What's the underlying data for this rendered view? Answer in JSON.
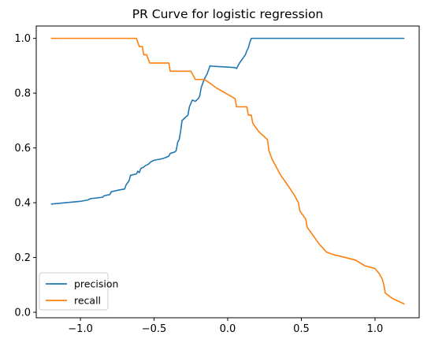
{
  "chart_data": {
    "type": "line",
    "title": "PR Curve for logistic regression",
    "xlabel": "",
    "ylabel": "",
    "xlim": [
      -1.3,
      1.3
    ],
    "ylim": [
      -0.02,
      1.045
    ],
    "x_ticks": [
      {
        "value": -1.0,
        "label": "−1.0"
      },
      {
        "value": -0.5,
        "label": "−0.5"
      },
      {
        "value": 0.0,
        "label": "0.0"
      },
      {
        "value": 0.5,
        "label": "0.5"
      },
      {
        "value": 1.0,
        "label": "1.0"
      }
    ],
    "y_ticks": [
      {
        "value": 0.0,
        "label": "0.0"
      },
      {
        "value": 0.2,
        "label": "0.2"
      },
      {
        "value": 0.4,
        "label": "0.4"
      },
      {
        "value": 0.6,
        "label": "0.6"
      },
      {
        "value": 0.8,
        "label": "0.8"
      },
      {
        "value": 1.0,
        "label": "1.0"
      }
    ],
    "grid": false,
    "legend_position": "lower-left",
    "series": [
      {
        "name": "precision",
        "color": "#1f77b4",
        "points": [
          [
            -1.2,
            0.395
          ],
          [
            -1.1,
            0.4
          ],
          [
            -1.0,
            0.405
          ],
          [
            -0.95,
            0.41
          ],
          [
            -0.93,
            0.415
          ],
          [
            -0.85,
            0.42
          ],
          [
            -0.84,
            0.425
          ],
          [
            -0.8,
            0.43
          ],
          [
            -0.79,
            0.44
          ],
          [
            -0.75,
            0.445
          ],
          [
            -0.7,
            0.45
          ],
          [
            -0.69,
            0.465
          ],
          [
            -0.67,
            0.48
          ],
          [
            -0.66,
            0.5
          ],
          [
            -0.62,
            0.505
          ],
          [
            -0.61,
            0.515
          ],
          [
            -0.6,
            0.51
          ],
          [
            -0.59,
            0.525
          ],
          [
            -0.57,
            0.53
          ],
          [
            -0.56,
            0.535
          ],
          [
            -0.54,
            0.54
          ],
          [
            -0.52,
            0.55
          ],
          [
            -0.5,
            0.555
          ],
          [
            -0.45,
            0.56
          ],
          [
            -0.42,
            0.565
          ],
          [
            -0.4,
            0.57
          ],
          [
            -0.39,
            0.58
          ],
          [
            -0.36,
            0.585
          ],
          [
            -0.35,
            0.59
          ],
          [
            -0.34,
            0.62
          ],
          [
            -0.33,
            0.63
          ],
          [
            -0.32,
            0.66
          ],
          [
            -0.31,
            0.7
          ],
          [
            -0.29,
            0.71
          ],
          [
            -0.27,
            0.72
          ],
          [
            -0.26,
            0.75
          ],
          [
            -0.24,
            0.775
          ],
          [
            -0.22,
            0.77
          ],
          [
            -0.2,
            0.78
          ],
          [
            -0.19,
            0.79
          ],
          [
            -0.18,
            0.82
          ],
          [
            -0.16,
            0.85
          ],
          [
            -0.15,
            0.86
          ],
          [
            -0.14,
            0.87
          ],
          [
            -0.13,
            0.885
          ],
          [
            -0.12,
            0.9
          ],
          [
            -0.1,
            0.898
          ],
          [
            0.0,
            0.895
          ],
          [
            0.05,
            0.893
          ],
          [
            0.06,
            0.89
          ],
          [
            0.08,
            0.91
          ],
          [
            0.1,
            0.925
          ],
          [
            0.12,
            0.94
          ],
          [
            0.13,
            0.955
          ],
          [
            0.14,
            0.965
          ],
          [
            0.15,
            0.985
          ],
          [
            0.16,
            1.0
          ],
          [
            0.5,
            1.0
          ],
          [
            1.0,
            1.0
          ],
          [
            1.2,
            1.0
          ]
        ]
      },
      {
        "name": "recall",
        "color": "#ff7f0e",
        "points": [
          [
            -1.2,
            1.0
          ],
          [
            -0.62,
            1.0
          ],
          [
            -0.6,
            0.97
          ],
          [
            -0.58,
            0.97
          ],
          [
            -0.57,
            0.94
          ],
          [
            -0.55,
            0.94
          ],
          [
            -0.53,
            0.91
          ],
          [
            -0.4,
            0.91
          ],
          [
            -0.39,
            0.88
          ],
          [
            -0.25,
            0.88
          ],
          [
            -0.22,
            0.85
          ],
          [
            -0.16,
            0.85
          ],
          [
            -0.13,
            0.84
          ],
          [
            -0.08,
            0.82
          ],
          [
            0.05,
            0.78
          ],
          [
            0.06,
            0.75
          ],
          [
            0.13,
            0.75
          ],
          [
            0.14,
            0.72
          ],
          [
            0.16,
            0.72
          ],
          [
            0.17,
            0.69
          ],
          [
            0.21,
            0.66
          ],
          [
            0.27,
            0.63
          ],
          [
            0.28,
            0.59
          ],
          [
            0.3,
            0.56
          ],
          [
            0.33,
            0.53
          ],
          [
            0.36,
            0.5
          ],
          [
            0.4,
            0.47
          ],
          [
            0.45,
            0.43
          ],
          [
            0.48,
            0.4
          ],
          [
            0.49,
            0.37
          ],
          [
            0.53,
            0.34
          ],
          [
            0.54,
            0.31
          ],
          [
            0.58,
            0.28
          ],
          [
            0.62,
            0.25
          ],
          [
            0.67,
            0.22
          ],
          [
            0.72,
            0.21
          ],
          [
            0.8,
            0.2
          ],
          [
            0.87,
            0.19
          ],
          [
            0.93,
            0.17
          ],
          [
            1.0,
            0.16
          ],
          [
            1.03,
            0.14
          ],
          [
            1.05,
            0.12
          ],
          [
            1.06,
            0.1
          ],
          [
            1.07,
            0.07
          ],
          [
            1.12,
            0.05
          ],
          [
            1.2,
            0.03
          ]
        ]
      }
    ]
  }
}
